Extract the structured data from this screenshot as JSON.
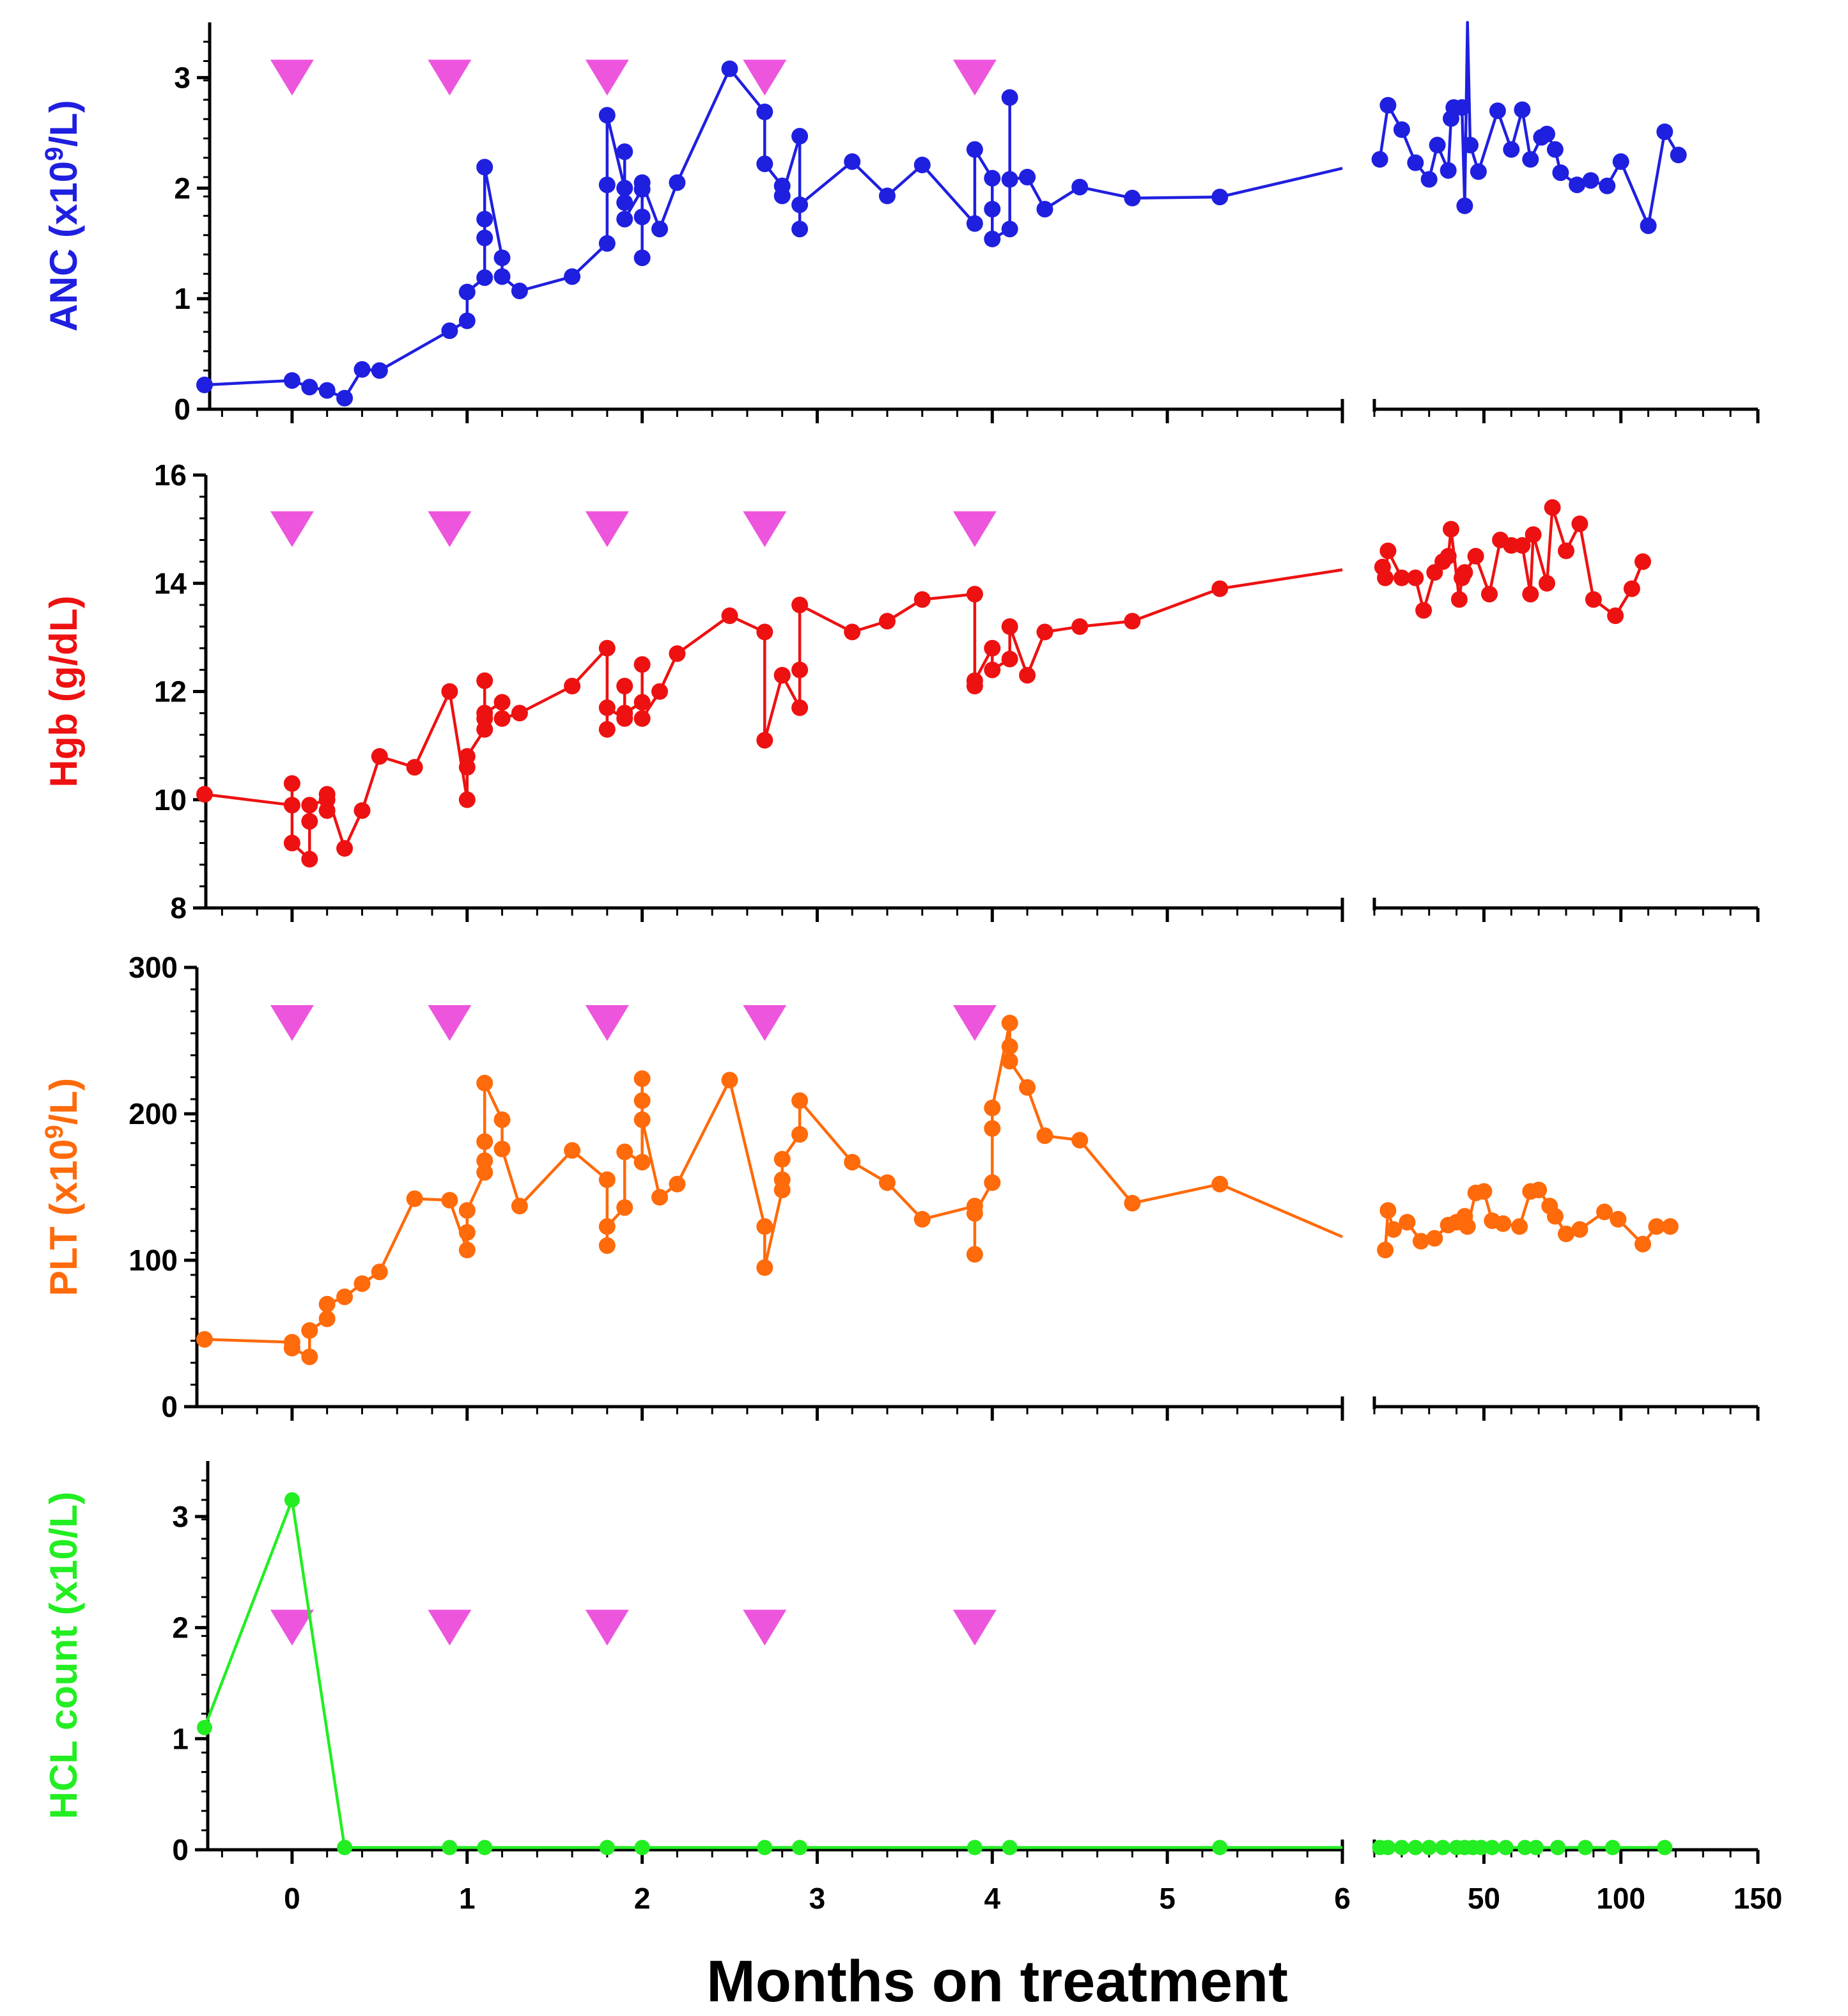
{
  "colors": {
    "anc": "#1f1fe0",
    "hgb": "#ee1111",
    "plt": "#ff6a0a",
    "hcl": "#22ee22",
    "marker": "#ee55dd",
    "axis": "#000000"
  },
  "chart_data": {
    "type": "line",
    "xlabel": "Months on treatment",
    "x_axis_left": {
      "range": [
        -0.5,
        6
      ],
      "ticks": [
        0,
        1,
        2,
        3,
        4,
        5,
        6
      ],
      "tick_labels": [
        "0",
        "1",
        "2",
        "3",
        "4",
        "5",
        "6"
      ]
    },
    "x_axis_right": {
      "range": [
        10,
        150
      ],
      "ticks": [
        50,
        100,
        150
      ],
      "tick_labels": [
        "50",
        "100",
        "150"
      ]
    },
    "treatment_markers_months": [
      0,
      0.9,
      1.8,
      2.7,
      3.9
    ],
    "panels": [
      {
        "key": "anc",
        "ylabel": "ANC (x10^9/L)",
        "ylabel_parts": {
          "base": "ANC (x10",
          "sup": "9",
          "tail": "/L)"
        },
        "ylim": [
          0,
          3.5
        ],
        "ticks": [
          0,
          1,
          2,
          3
        ],
        "tick_labels": [
          "0",
          "1",
          "2",
          "3"
        ],
        "marker_y": 3.0,
        "left": [
          [
            -0.5,
            0.22
          ],
          [
            0,
            0.26
          ],
          [
            0.1,
            0.2
          ],
          [
            0.2,
            0.17
          ],
          [
            0.3,
            0.1
          ],
          [
            0.4,
            0.36
          ],
          [
            0.5,
            0.35
          ],
          [
            0.9,
            0.71
          ],
          [
            1.0,
            0.8
          ],
          [
            1.0,
            1.06
          ],
          [
            1.1,
            1.19
          ],
          [
            1.1,
            1.55
          ],
          [
            1.1,
            1.72
          ],
          [
            1.1,
            2.19
          ],
          [
            1.2,
            1.37
          ],
          [
            1.2,
            1.2
          ],
          [
            1.3,
            1.07
          ],
          [
            1.6,
            1.2
          ],
          [
            1.8,
            1.5
          ],
          [
            1.8,
            2.03
          ],
          [
            1.8,
            2.66
          ],
          [
            1.9,
            2.0
          ],
          [
            1.9,
            1.87
          ],
          [
            1.9,
            2.33
          ],
          [
            1.9,
            1.72
          ],
          [
            2.0,
            1.99
          ],
          [
            2.0,
            1.37
          ],
          [
            2.0,
            1.74
          ],
          [
            2.0,
            2.05
          ],
          [
            2.1,
            1.63
          ],
          [
            2.2,
            2.05
          ],
          [
            2.5,
            3.08
          ],
          [
            2.7,
            2.69
          ],
          [
            2.7,
            2.22
          ],
          [
            2.8,
            2.02
          ],
          [
            2.8,
            1.93
          ],
          [
            2.9,
            2.47
          ],
          [
            2.9,
            1.63
          ],
          [
            2.9,
            1.85
          ],
          [
            3.2,
            2.24
          ],
          [
            3.4,
            1.93
          ],
          [
            3.6,
            2.21
          ],
          [
            3.9,
            1.68
          ],
          [
            3.9,
            2.35
          ],
          [
            4.0,
            2.09
          ],
          [
            4.0,
            1.81
          ],
          [
            4.0,
            1.54
          ],
          [
            4.1,
            1.63
          ],
          [
            4.1,
            2.82
          ],
          [
            4.1,
            2.08
          ],
          [
            4.2,
            2.1
          ],
          [
            4.3,
            1.81
          ],
          [
            4.5,
            2.01
          ],
          [
            4.8,
            1.91
          ],
          [
            5.3,
            1.92
          ],
          [
            6.0,
            2.18
          ]
        ],
        "right": [
          [
            12,
            2.26
          ],
          [
            15,
            2.75
          ],
          [
            20,
            2.53
          ],
          [
            25,
            2.23
          ],
          [
            30,
            2.08
          ],
          [
            33,
            2.39
          ],
          [
            37,
            2.16
          ],
          [
            38,
            2.63
          ],
          [
            39,
            2.73
          ],
          [
            42,
            2.73
          ],
          [
            43,
            1.84
          ],
          [
            44,
            3.5
          ],
          [
            45,
            2.39
          ],
          [
            48,
            2.15
          ],
          [
            55,
            2.7
          ],
          [
            60,
            2.35
          ],
          [
            64,
            2.71
          ],
          [
            67,
            2.26
          ],
          [
            71,
            2.46
          ],
          [
            73,
            2.49
          ],
          [
            76,
            2.35
          ],
          [
            78,
            2.14
          ],
          [
            84,
            2.03
          ],
          [
            89,
            2.07
          ],
          [
            95,
            2.02
          ],
          [
            100,
            2.24
          ],
          [
            110,
            1.66
          ],
          [
            116,
            2.51
          ],
          [
            121,
            2.3
          ]
        ]
      },
      {
        "key": "hgb",
        "ylabel": "Hgb (g/dL)",
        "ylim": [
          8,
          16
        ],
        "ticks": [
          8,
          10,
          12,
          14,
          16
        ],
        "tick_labels": [
          "8",
          "10",
          "12",
          "14",
          "16"
        ],
        "marker_y": 15.0,
        "left": [
          [
            -0.5,
            10.1
          ],
          [
            0,
            9.9
          ],
          [
            0,
            10.3
          ],
          [
            0,
            9.2
          ],
          [
            0.1,
            8.9
          ],
          [
            0.1,
            9.6
          ],
          [
            0.1,
            9.9
          ],
          [
            0.2,
            10.0
          ],
          [
            0.2,
            9.8
          ],
          [
            0.2,
            10.1
          ],
          [
            0.3,
            9.1
          ],
          [
            0.4,
            9.8
          ],
          [
            0.5,
            10.8
          ],
          [
            0.7,
            10.6
          ],
          [
            0.9,
            12.0
          ],
          [
            1.0,
            10.0
          ],
          [
            1.0,
            10.6
          ],
          [
            1.0,
            10.8
          ],
          [
            1.1,
            11.3
          ],
          [
            1.1,
            11.5
          ],
          [
            1.1,
            12.2
          ],
          [
            1.1,
            11.6
          ],
          [
            1.2,
            11.8
          ],
          [
            1.2,
            11.5
          ],
          [
            1.3,
            11.6
          ],
          [
            1.6,
            12.1
          ],
          [
            1.8,
            12.8
          ],
          [
            1.8,
            11.3
          ],
          [
            1.8,
            11.7
          ],
          [
            1.9,
            11.5
          ],
          [
            1.9,
            12.1
          ],
          [
            1.9,
            11.6
          ],
          [
            2.0,
            11.8
          ],
          [
            2.0,
            12.5
          ],
          [
            2.0,
            11.5
          ],
          [
            2.1,
            12.0
          ],
          [
            2.2,
            12.7
          ],
          [
            2.5,
            13.4
          ],
          [
            2.7,
            13.1
          ],
          [
            2.7,
            11.1
          ],
          [
            2.8,
            12.3
          ],
          [
            2.8,
            12.3
          ],
          [
            2.9,
            11.7
          ],
          [
            2.9,
            12.4
          ],
          [
            2.9,
            13.6
          ],
          [
            3.2,
            13.1
          ],
          [
            3.4,
            13.3
          ],
          [
            3.6,
            13.7
          ],
          [
            3.9,
            13.8
          ],
          [
            3.9,
            12.1
          ],
          [
            3.9,
            12.2
          ],
          [
            4.0,
            12.8
          ],
          [
            4.0,
            12.4
          ],
          [
            4.1,
            12.6
          ],
          [
            4.1,
            13.2
          ],
          [
            4.2,
            12.3
          ],
          [
            4.3,
            13.1
          ],
          [
            4.5,
            13.2
          ],
          [
            4.8,
            13.3
          ],
          [
            5.3,
            13.9
          ],
          [
            6.0,
            14.25
          ]
        ],
        "right": [
          [
            13,
            14.3
          ],
          [
            14,
            14.1
          ],
          [
            15,
            14.6
          ],
          [
            20,
            14.1
          ],
          [
            25,
            14.1
          ],
          [
            28,
            13.5
          ],
          [
            32,
            14.2
          ],
          [
            35,
            14.4
          ],
          [
            37,
            14.5
          ],
          [
            38,
            15.0
          ],
          [
            41,
            13.7
          ],
          [
            42,
            14.1
          ],
          [
            43,
            14.2
          ],
          [
            47,
            14.5
          ],
          [
            52,
            13.8
          ],
          [
            56,
            14.8
          ],
          [
            60,
            14.7
          ],
          [
            64,
            14.7
          ],
          [
            67,
            13.8
          ],
          [
            68,
            14.9
          ],
          [
            73,
            14.0
          ],
          [
            75,
            15.4
          ],
          [
            80,
            14.6
          ],
          [
            85,
            15.1
          ],
          [
            90,
            13.7
          ],
          [
            98,
            13.4
          ],
          [
            104,
            13.9
          ],
          [
            108,
            14.4
          ]
        ]
      },
      {
        "key": "plt",
        "ylabel": "PLT (x10^9/L)",
        "ylabel_parts": {
          "base": "PLT (x10",
          "sup": "9",
          "tail": "/L)"
        },
        "ylim": [
          0,
          300
        ],
        "ticks": [
          0,
          100,
          200,
          300
        ],
        "tick_labels": [
          "0",
          "100",
          "200",
          "300"
        ],
        "marker_y": 262,
        "left": [
          [
            -0.5,
            46
          ],
          [
            0,
            44
          ],
          [
            0,
            40
          ],
          [
            0.1,
            34
          ],
          [
            0.1,
            52
          ],
          [
            0.2,
            60
          ],
          [
            0.2,
            70
          ],
          [
            0.3,
            75
          ],
          [
            0.4,
            84
          ],
          [
            0.5,
            92
          ],
          [
            0.7,
            142
          ],
          [
            0.9,
            141
          ],
          [
            1.0,
            107
          ],
          [
            1.0,
            119
          ],
          [
            1.0,
            134
          ],
          [
            1.1,
            160
          ],
          [
            1.1,
            168
          ],
          [
            1.1,
            181
          ],
          [
            1.1,
            221
          ],
          [
            1.2,
            196
          ],
          [
            1.2,
            176
          ],
          [
            1.3,
            137
          ],
          [
            1.6,
            175
          ],
          [
            1.8,
            155
          ],
          [
            1.8,
            110
          ],
          [
            1.8,
            123
          ],
          [
            1.9,
            136
          ],
          [
            1.9,
            174
          ],
          [
            2.0,
            167
          ],
          [
            2.0,
            224
          ],
          [
            2.0,
            209
          ],
          [
            2.0,
            196
          ],
          [
            2.1,
            143
          ],
          [
            2.2,
            152
          ],
          [
            2.5,
            223
          ],
          [
            2.7,
            123
          ],
          [
            2.7,
            95
          ],
          [
            2.8,
            148
          ],
          [
            2.8,
            155
          ],
          [
            2.8,
            169
          ],
          [
            2.9,
            186
          ],
          [
            2.9,
            209
          ],
          [
            3.2,
            167
          ],
          [
            3.4,
            153
          ],
          [
            3.6,
            128
          ],
          [
            3.9,
            137
          ],
          [
            3.9,
            104
          ],
          [
            3.9,
            132
          ],
          [
            4.0,
            153
          ],
          [
            4.0,
            190
          ],
          [
            4.0,
            204
          ],
          [
            4.1,
            262
          ],
          [
            4.1,
            246
          ],
          [
            4.1,
            236
          ],
          [
            4.2,
            218
          ],
          [
            4.3,
            185
          ],
          [
            4.5,
            182
          ],
          [
            4.8,
            139
          ],
          [
            5.3,
            152
          ],
          [
            6.0,
            116
          ]
        ],
        "right": [
          [
            14,
            107
          ],
          [
            15,
            134
          ],
          [
            17,
            121
          ],
          [
            22,
            126
          ],
          [
            27,
            113
          ],
          [
            32,
            115
          ],
          [
            37,
            124
          ],
          [
            40,
            126
          ],
          [
            43,
            130
          ],
          [
            44,
            123
          ],
          [
            47,
            146
          ],
          [
            50,
            147
          ],
          [
            53,
            127
          ],
          [
            57,
            125
          ],
          [
            63,
            123
          ],
          [
            67,
            147
          ],
          [
            70,
            148
          ],
          [
            74,
            137
          ],
          [
            76,
            130
          ],
          [
            80,
            118
          ],
          [
            85,
            121
          ],
          [
            94,
            133
          ],
          [
            99,
            128
          ],
          [
            108,
            111
          ],
          [
            113,
            123
          ],
          [
            118,
            123
          ]
        ]
      },
      {
        "key": "hcl",
        "ylabel": "HCL count (x10/L)",
        "ylim": [
          0,
          3.5
        ],
        "ticks": [
          0,
          1,
          2,
          3
        ],
        "tick_labels": [
          "0",
          "1",
          "2",
          "3"
        ],
        "marker_y": 2.0,
        "left": [
          [
            -0.5,
            1.1
          ],
          [
            0,
            3.15
          ],
          [
            0.3,
            0.02
          ],
          [
            0.9,
            0.02
          ],
          [
            1.1,
            0.02
          ],
          [
            1.8,
            0.02
          ],
          [
            2.0,
            0.02
          ],
          [
            2.7,
            0.02
          ],
          [
            2.9,
            0.02
          ],
          [
            3.9,
            0.02
          ],
          [
            4.1,
            0.02
          ],
          [
            5.3,
            0.02
          ],
          [
            6.0,
            0.02
          ]
        ],
        "right": [
          [
            12,
            0.02
          ],
          [
            15,
            0.02
          ],
          [
            20,
            0.02
          ],
          [
            25,
            0.02
          ],
          [
            30,
            0.02
          ],
          [
            35,
            0.02
          ],
          [
            40,
            0.02
          ],
          [
            43,
            0.02
          ],
          [
            46,
            0.02
          ],
          [
            49,
            0.02
          ],
          [
            53,
            0.02
          ],
          [
            58,
            0.02
          ],
          [
            65,
            0.02
          ],
          [
            69,
            0.02
          ],
          [
            77,
            0.02
          ],
          [
            87,
            0.02
          ],
          [
            97,
            0.02
          ],
          [
            116,
            0.02
          ]
        ]
      }
    ]
  }
}
